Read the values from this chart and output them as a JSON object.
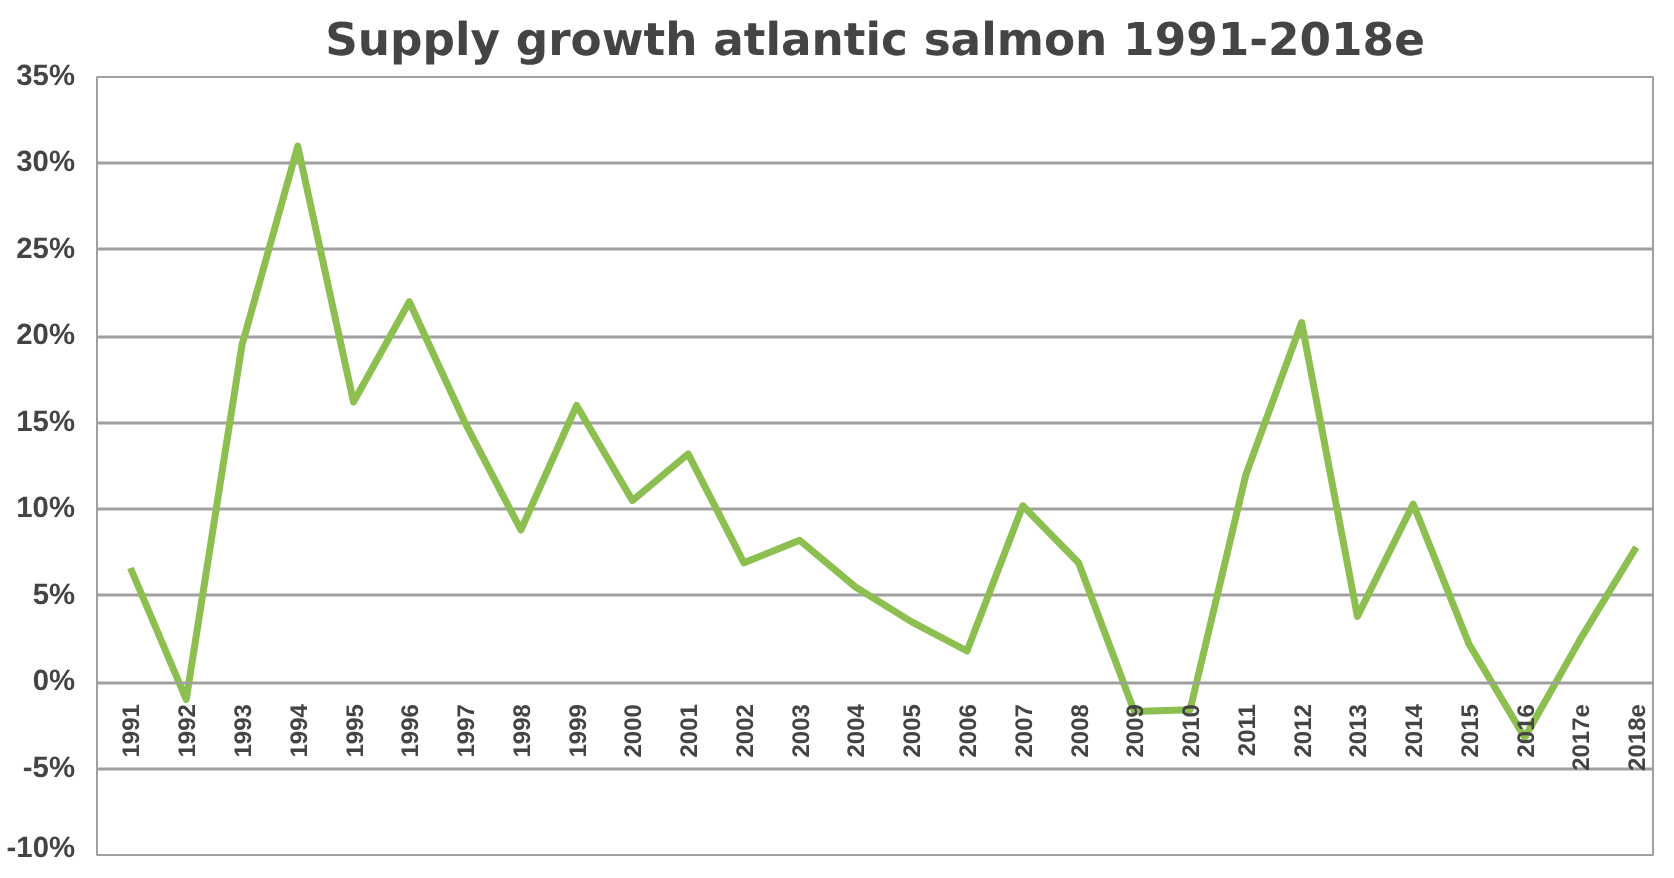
{
  "chart_data": {
    "type": "line",
    "title": "Supply growth atlantic salmon 1991-2018e",
    "categories": [
      "1991",
      "1992",
      "1993",
      "1994",
      "1995",
      "1996",
      "1997",
      "1998",
      "1999",
      "2000",
      "2001",
      "2002",
      "2003",
      "2004",
      "2005",
      "2006",
      "2007",
      "2008",
      "2009",
      "2010",
      "2011",
      "2012",
      "2013",
      "2014",
      "2015",
      "2016",
      "2017e",
      "2018e"
    ],
    "series": [
      {
        "color": "#8cbf4f",
        "values": [
          6.6,
          -1.0,
          19.5,
          31,
          16.2,
          22,
          15,
          8.8,
          16,
          10.5,
          13.2,
          6.9,
          8.2,
          5.5,
          3.5,
          1.8,
          10.2,
          6.9,
          -1.7,
          -1.6,
          12,
          20.8,
          3.8,
          10.3,
          2.2,
          -3.2,
          2.5,
          7.8
        ]
      }
    ],
    "ylim": [
      -10,
      35
    ],
    "yticks": [
      {
        "value": -10,
        "label": "-10%"
      },
      {
        "value": -5,
        "label": "-5%"
      },
      {
        "value": 0,
        "label": "0%"
      },
      {
        "value": 5,
        "label": "5%"
      },
      {
        "value": 10,
        "label": "10%"
      },
      {
        "value": 15,
        "label": "15%"
      },
      {
        "value": 20,
        "label": "20%"
      },
      {
        "value": 25,
        "label": "25%"
      },
      {
        "value": 30,
        "label": "30%"
      },
      {
        "value": 35,
        "label": "35%"
      }
    ],
    "grid": "y",
    "marker": "none",
    "line_style": "solid"
  }
}
